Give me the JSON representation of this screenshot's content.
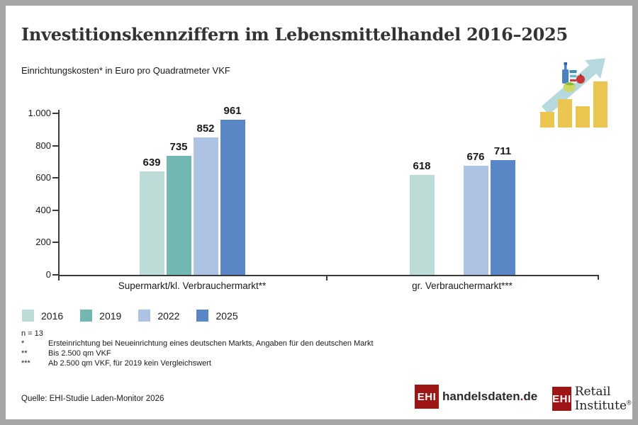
{
  "page": {
    "title": "Investitionskennziffern im Lebensmittelhandel 2016–2025",
    "subtitle": "Einrichtungskosten* in Euro pro Quadratmeter VKF"
  },
  "chart_data": {
    "type": "bar",
    "title": "Einrichtungskosten* in Euro pro Quadratmeter VKF",
    "categories": [
      "Supermarkt/kl. Verbrauchermarkt**",
      "gr. Verbrauchermarkt***"
    ],
    "series": [
      {
        "name": "2016",
        "color": "#bddcd8",
        "values": [
          639,
          618
        ]
      },
      {
        "name": "2019",
        "color": "#72b7b1",
        "values": [
          735,
          null
        ]
      },
      {
        "name": "2022",
        "color": "#aec3e4",
        "values": [
          852,
          676
        ]
      },
      {
        "name": "2025",
        "color": "#5b86c5",
        "values": [
          961,
          711
        ]
      }
    ],
    "ylim": [
      0,
      1000
    ],
    "y_ticks": [
      {
        "value": 0,
        "label": "0"
      },
      {
        "value": 200,
        "label": "200"
      },
      {
        "value": 400,
        "label": "400"
      },
      {
        "value": 600,
        "label": "600"
      },
      {
        "value": 800,
        "label": "800"
      },
      {
        "value": 1000,
        "label": "1.000"
      }
    ],
    "grid": false,
    "value_labels": true,
    "legend_position": "bottom-left"
  },
  "footnotes": [
    {
      "marker": "n = 13",
      "text": ""
    },
    {
      "marker": "*",
      "text": "Ersteinrichtung bei Neueinrichtung eines deutschen Markts, Angaben für den deutschen Markt"
    },
    {
      "marker": "**",
      "text": "Bis 2.500 qm VKF"
    },
    {
      "marker": "***",
      "text": "Ab 2.500 qm VKF, für 2019 kein Vergleichswert"
    }
  ],
  "source": "Quelle: EHI-Studie Laden-Monitor 2026",
  "logos": {
    "handelsdaten": {
      "badge": "EHI",
      "name": "handelsdaten",
      "dot": ".",
      "tld": "de"
    },
    "retail": {
      "badge": "EHI",
      "name": "Retail Institute",
      "reg": "®"
    }
  },
  "colors": {
    "brand_red": "#9e1515",
    "axis": "#3a3a3a",
    "icon_yellow": "#eac651",
    "icon_arrow_teal": "#b5d9dc"
  }
}
